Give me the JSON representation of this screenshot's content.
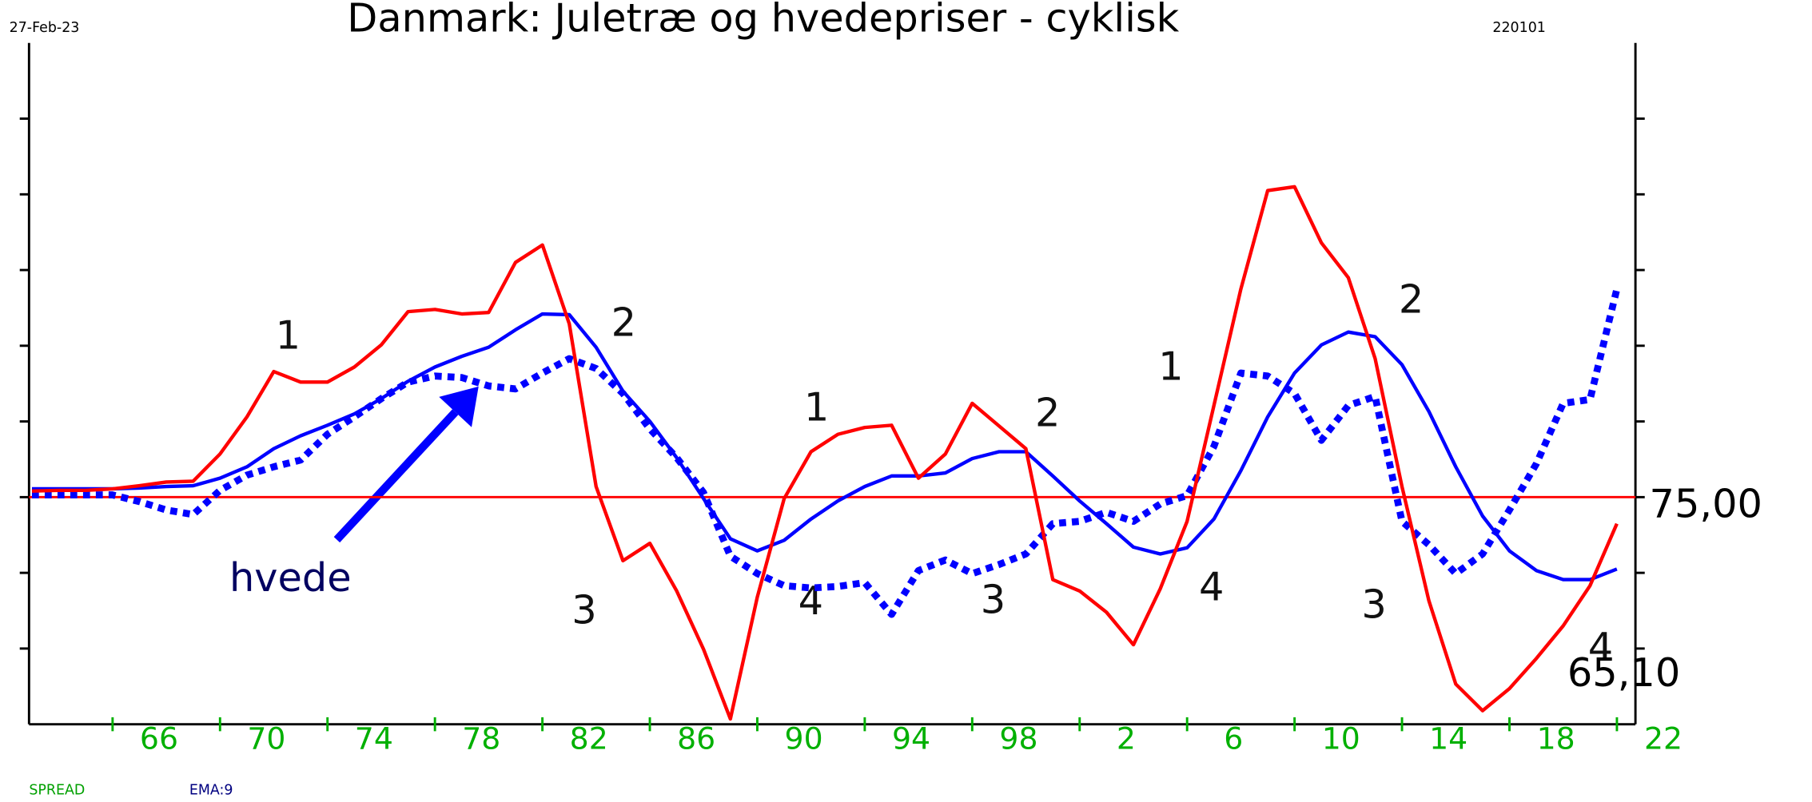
{
  "chart_data": {
    "type": "line",
    "title": "Danmark: Juletræ og hvedepriser - cyklisk",
    "date": "27-Feb-23",
    "code": "220101",
    "x": [
      1963,
      1964,
      1965,
      1966,
      1967,
      1968,
      1969,
      1970,
      1971,
      1972,
      1973,
      1974,
      1975,
      1976,
      1977,
      1978,
      1979,
      1980,
      1981,
      1982,
      1983,
      1984,
      1985,
      1986,
      1987,
      1988,
      1989,
      1990,
      1991,
      1992,
      1993,
      1994,
      1995,
      1996,
      1997,
      1998,
      1999,
      2000,
      2001,
      2002,
      2003,
      2004,
      2005,
      2006,
      2007,
      2008,
      2009,
      2010,
      2011,
      2012,
      2013,
      2014,
      2015,
      2016,
      2017,
      2018,
      2019,
      2020,
      2021,
      2022
    ],
    "series": [
      {
        "name": "SPREAD",
        "color": "#ff0000",
        "values": [
          75.08,
          75.09,
          75.09,
          75.11,
          75.15,
          75.2,
          75.21,
          75.57,
          76.06,
          76.66,
          76.52,
          76.52,
          76.72,
          77.01,
          77.45,
          77.48,
          77.42,
          77.44,
          78.1,
          78.33,
          77.29,
          75.14,
          74.16,
          74.39,
          73.76,
          72.99,
          72.07,
          73.68,
          74.98,
          75.6,
          75.83,
          75.92,
          75.95,
          75.25,
          75.57,
          76.24,
          75.94,
          75.64,
          73.91,
          73.76,
          73.48,
          73.05,
          73.79,
          74.68,
          76.21,
          77.75,
          79.05,
          79.1,
          78.36,
          77.9,
          76.83,
          75.14,
          73.63,
          72.53,
          72.18,
          72.47,
          72.87,
          73.3,
          73.83,
          74.65
        ]
      },
      {
        "name": "EMA:9",
        "color": "#0000ff",
        "values": [
          75.11,
          75.11,
          75.11,
          75.11,
          75.12,
          75.14,
          75.15,
          75.25,
          75.4,
          75.64,
          75.81,
          75.95,
          76.1,
          76.3,
          76.53,
          76.72,
          76.86,
          76.98,
          77.21,
          77.42,
          77.41,
          76.98,
          76.4,
          76.0,
          75.52,
          74.98,
          74.45,
          74.29,
          74.43,
          74.71,
          74.95,
          75.14,
          75.28,
          75.28,
          75.32,
          75.51,
          75.6,
          75.6,
          75.28,
          74.95,
          74.65,
          74.34,
          74.25,
          74.33,
          74.71,
          75.35,
          76.06,
          76.64,
          77.01,
          77.18,
          77.12,
          76.75,
          76.13,
          75.4,
          74.75,
          74.29,
          74.03,
          73.91,
          73.91,
          74.05
        ]
      },
      {
        "name": "hvede",
        "color": "#0000ff",
        "dotted": true,
        "values": [
          75.03,
          75.03,
          75.03,
          75.03,
          74.94,
          74.83,
          74.77,
          75.09,
          75.29,
          75.4,
          75.49,
          75.83,
          76.06,
          76.3,
          76.52,
          76.6,
          76.58,
          76.47,
          76.43,
          76.64,
          76.83,
          76.7,
          76.37,
          75.9,
          75.52,
          75.06,
          74.22,
          73.99,
          73.83,
          73.8,
          73.82,
          73.87,
          73.45,
          74.03,
          74.17,
          73.99,
          74.11,
          74.25,
          74.65,
          74.68,
          74.8,
          74.68,
          74.91,
          75.02,
          75.67,
          76.64,
          76.6,
          76.37,
          75.75,
          76.21,
          76.33,
          74.68,
          74.37,
          73.99,
          74.25,
          74.83,
          75.44,
          76.24,
          76.29,
          77.75
        ]
      }
    ],
    "reference": {
      "value": 75,
      "label": "75,00",
      "color": "#ff0000"
    },
    "bottom_label": "65,10",
    "annotations": [
      "1",
      "2",
      "3",
      "1",
      "4",
      "2",
      "3",
      "1",
      "4",
      "2",
      "3",
      "4"
    ],
    "xlim": [
      1962.89,
      2022.69
    ],
    "xticks": [
      {
        "value": 1966,
        "label": "66"
      },
      {
        "value": 1970,
        "label": "70"
      },
      {
        "value": 1974,
        "label": "74"
      },
      {
        "value": 1978,
        "label": "78"
      },
      {
        "value": 1982,
        "label": "82"
      },
      {
        "value": 1986,
        "label": "86"
      },
      {
        "value": 1990,
        "label": "90"
      },
      {
        "value": 1994,
        "label": "94"
      },
      {
        "value": 1998,
        "label": "98"
      },
      {
        "value": 2002,
        "label": "2"
      },
      {
        "value": 2006,
        "label": "6"
      },
      {
        "value": 2010,
        "label": "10"
      },
      {
        "value": 2014,
        "label": "14"
      },
      {
        "value": 2018,
        "label": "18"
      },
      {
        "value": 2022,
        "label": "22"
      }
    ],
    "xtick_color": "#00b000",
    "ylim": [
      72,
      81
    ],
    "yticks": [
      73,
      74,
      75,
      76,
      77,
      78,
      79,
      80
    ]
  }
}
